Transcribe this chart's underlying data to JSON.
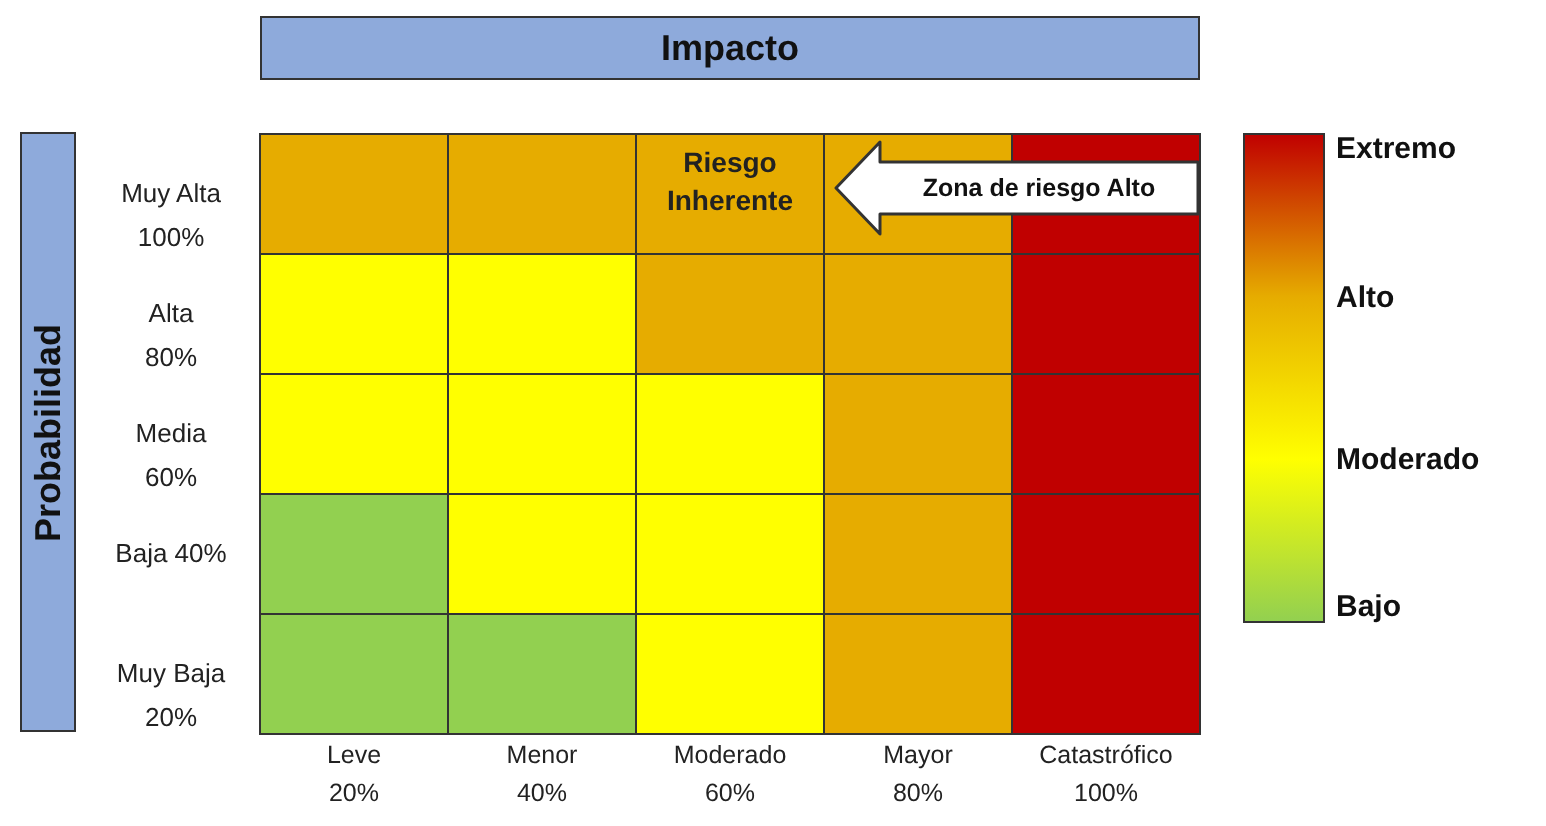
{
  "chart_data": {
    "type": "heatmap",
    "title": "Impacto",
    "ylabel": "Probabilidad",
    "categories": [
      "Leve\n20%",
      "Menor\n40%",
      "Moderado\n60%",
      "Mayor\n80%",
      "Catastrófico\n100%"
    ],
    "y_categories": [
      "Muy Alta\n100%",
      "Alta\n80%",
      "Media\n60%",
      "Baja 40%",
      "Muy Baja\n20%"
    ],
    "cells": [
      [
        3,
        3,
        3,
        3,
        4
      ],
      [
        2,
        2,
        3,
        3,
        4
      ],
      [
        2,
        2,
        2,
        3,
        4
      ],
      [
        1,
        2,
        2,
        3,
        4
      ],
      [
        1,
        1,
        2,
        3,
        4
      ]
    ],
    "cticks": [
      {
        "value": 1,
        "label": "Bajo"
      },
      {
        "value": 2,
        "label": "Moderado"
      },
      {
        "value": 3,
        "label": "Alto"
      },
      {
        "value": 4,
        "label": "Extremo"
      }
    ],
    "colors": [
      "#92d050",
      "#ffff00",
      "#e6ac00",
      "#c00000"
    ],
    "annotations": [
      "Riesgo\nInherente",
      "Zona de riesgo Alto"
    ]
  }
}
